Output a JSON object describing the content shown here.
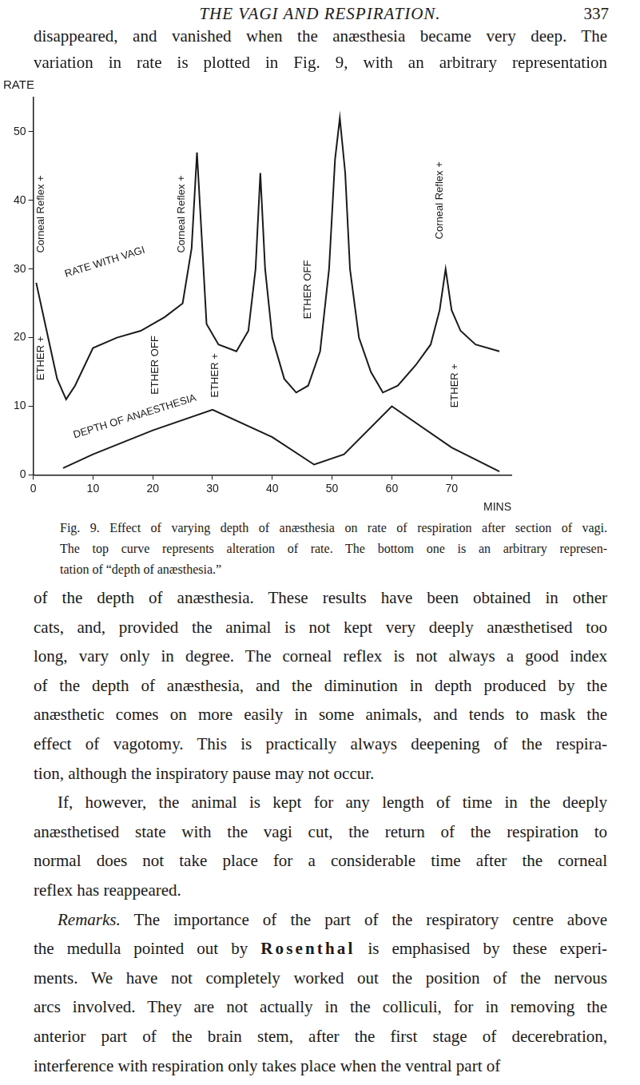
{
  "header": {
    "title": "THE VAGI AND RESPIRATION.",
    "page": "337"
  },
  "text_before": [
    "disappeared, and vanished when the anæsthesia became very deep. The",
    "variation in rate is plotted in Fig. 9, with an arbitrary representation"
  ],
  "chart_data": {
    "type": "line",
    "x_label": "MINS",
    "y_label": "RATE",
    "xlim": [
      0,
      80
    ],
    "xticks": [
      0,
      10,
      20,
      30,
      40,
      50,
      60,
      70
    ],
    "ylim": [
      0,
      55
    ],
    "yticks": [
      0,
      10,
      20,
      30,
      40,
      50
    ],
    "grid": false,
    "series": [
      {
        "color": "#1a1a1a",
        "line_style": "solid",
        "x": [
          0.5,
          2,
          4,
          5.5,
          7,
          10,
          14,
          18,
          22,
          25,
          26.5,
          27.4,
          28.3,
          29,
          31,
          34,
          36,
          37.2,
          38,
          38.8,
          40,
          42,
          44,
          46,
          48,
          49.5,
          50.5,
          51.3,
          52.2,
          53,
          54.5,
          56.5,
          58.5,
          61,
          64,
          66.5,
          68,
          69,
          70,
          71.5,
          74,
          78
        ],
        "values": [
          28,
          22,
          14,
          11,
          13,
          18.5,
          20,
          21,
          23,
          25,
          33,
          47,
          33,
          22,
          19,
          18,
          21,
          30,
          44,
          30,
          20,
          14,
          12,
          13,
          18,
          30,
          46,
          52,
          44,
          30,
          20,
          15,
          12,
          13,
          16,
          19,
          24,
          30,
          24,
          21,
          19,
          18
        ]
      },
      {
        "color": "#1a1a1a",
        "line_style": "solid",
        "x": [
          5,
          10,
          20,
          30,
          40,
          47,
          52,
          60,
          70,
          78
        ],
        "values": [
          1,
          3,
          6.5,
          9.5,
          5.5,
          1.5,
          3,
          10,
          4,
          0.5
        ]
      }
    ],
    "event_labels": [
      {
        "text": "Corneal Reflex +",
        "x": 1.3,
        "y": 38
      },
      {
        "text": "ETHER +",
        "x": 1.3,
        "y": 17
      },
      {
        "text": "ETHER OFF",
        "x": 20.5,
        "y": 16
      },
      {
        "text": "Corneal Reflex +",
        "x": 24.8,
        "y": 38
      },
      {
        "text": "ETHER +",
        "x": 30.5,
        "y": 14.5
      },
      {
        "text": "ETHER OFF",
        "x": 46,
        "y": 27
      },
      {
        "text": "Corneal Reflex +",
        "x": 68,
        "y": 40
      },
      {
        "text": "ETHER +",
        "x": 70.5,
        "y": 13
      }
    ],
    "curve_labels": [
      {
        "text": "RATE WITH VAGI",
        "x": 12,
        "y": 31
      },
      {
        "text": "DEPTH OF ANAESTHESIA",
        "x": 17,
        "y": 8.5
      }
    ]
  },
  "caption": [
    "Fig. 9. Effect of varying depth of anæsthesia on rate of respiration after section of vagi.",
    "The top curve represents alteration of rate. The bottom one is an arbitrary represen-",
    "tation of “depth of anæsthesia.”"
  ],
  "body": [
    {
      "lines": [
        "of the depth of anæsthesia. These results have been obtained in other",
        "cats, and, provided the animal is not kept very deeply anæsthetised too",
        "long, vary only in degree. The corneal reflex is not always a good index",
        "of the depth of anæsthesia, and the diminution in depth produced by the",
        "anæsthetic comes on more easily in some animals, and tends to mask the",
        "effect of vagotomy. This is practically always deepening of the respira-",
        "tion, although the inspiratory pause may not occur."
      ]
    },
    {
      "lines": [
        "If, however, the animal is kept for any length of time in the deeply",
        "anæsthetised state with the vagi cut, the return of the respiration to",
        "normal does not take place for a considerable time after the corneal",
        "reflex has reappeared."
      ]
    },
    {
      "heading": "Remarks.",
      "spaced_name": "Rosenthal",
      "lines": [
        "The importance of the part of the respiratory centre above",
        "the medulla pointed out by Rosenthal is emphasised by these experi-",
        "ments. We have not completely worked out the position of the nervous",
        "arcs involved. They are not actually in the colliculi, for in removing the",
        "anterior part of the brain stem, after the first stage of decerebration,",
        "interference with respiration only takes place when the ventral part of"
      ]
    }
  ]
}
